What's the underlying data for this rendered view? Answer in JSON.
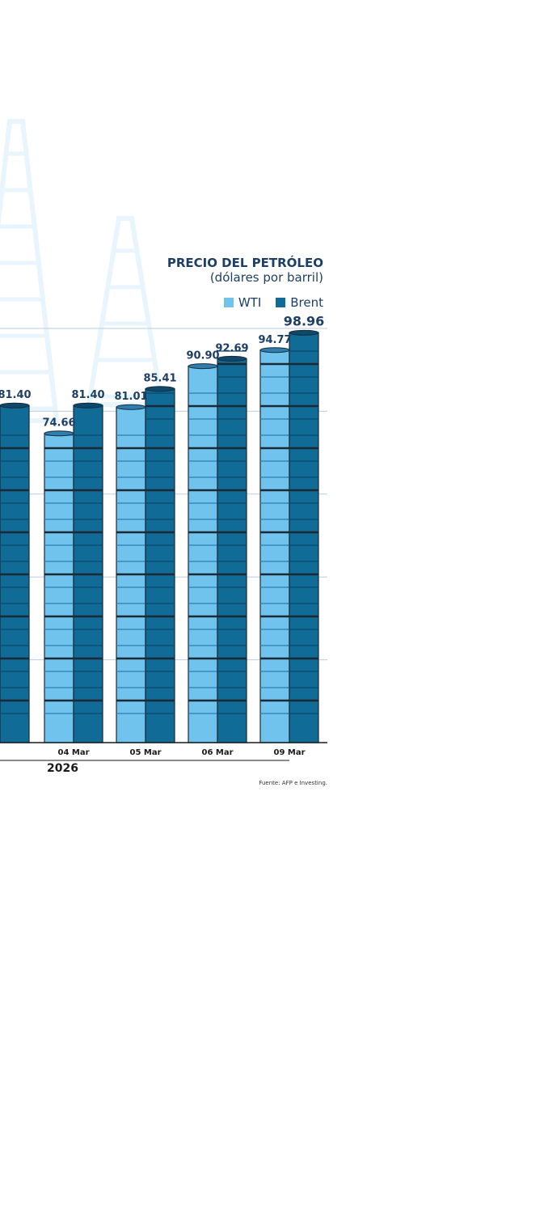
{
  "chart_data": {
    "type": "bar",
    "title": "PRECIO DEL PETRÓLEO",
    "subtitle": "(dólares por barril)",
    "categories": [
      "",
      "04 Mar",
      "05 Mar",
      "06 Mar",
      "09 Mar"
    ],
    "series": [
      {
        "name": "WTI",
        "values": [
          null,
          74.66,
          81.01,
          90.9,
          94.77
        ],
        "labels": [
          "",
          "74.66",
          "81.01",
          "90.90",
          "94.77"
        ]
      },
      {
        "name": "Brent",
        "values": [
          81.4,
          81.4,
          85.41,
          92.69,
          98.96
        ],
        "labels": [
          "81.40",
          "81.40",
          "85.41",
          "92.69",
          "98.96"
        ]
      }
    ],
    "year_label": "2026",
    "ylim": [
      0,
      100
    ],
    "grid": true,
    "legend": "top-right"
  },
  "source": "Fuente: AFP e Investing.",
  "colors": {
    "wti": "#6fc3ec",
    "brent": "#116b97",
    "title": "#1d3f66",
    "grid": "#b8cde0",
    "background_rig": "#e9f5fc"
  }
}
